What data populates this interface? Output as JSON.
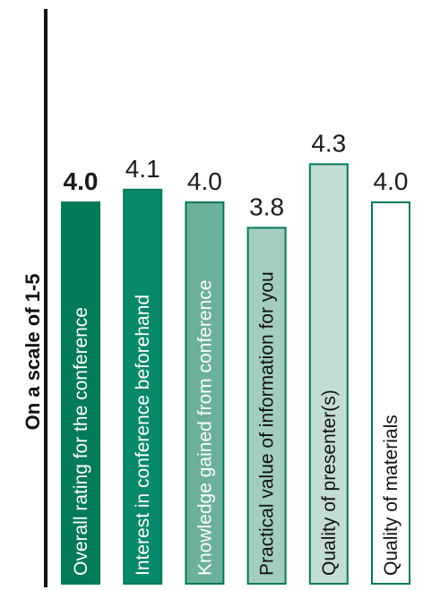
{
  "chart_data": {
    "type": "bar",
    "title": "",
    "xlabel": "",
    "ylabel": "On a scale of 1-5",
    "ylim": [
      0,
      4.3
    ],
    "grid": false,
    "legend": "none",
    "categories": [
      "Overall rating for the conference",
      "Interest in conference beforehand",
      "Knowledge gained from conference",
      "Practical value of information for you",
      "Quality of presenter(s)",
      "Quality of materials"
    ],
    "values": [
      4.0,
      4.1,
      4.0,
      3.8,
      4.3,
      4.0
    ],
    "value_labels": [
      "4.0",
      "4.1",
      "4.0",
      "3.8",
      "4.3",
      "4.0"
    ],
    "bold_value_indices": [
      0
    ],
    "bar_colors": [
      "#037a5a",
      "#08896b",
      "#6bb09b",
      "#a3cdbf",
      "#c3ddd3",
      "#ffffff"
    ],
    "label_colors": [
      "#ffffff",
      "#ffffff",
      "#ffffff",
      "#111111",
      "#111111",
      "#111111"
    ],
    "bar_edge_color": "#037a5a",
    "axis_color": "#111111"
  }
}
